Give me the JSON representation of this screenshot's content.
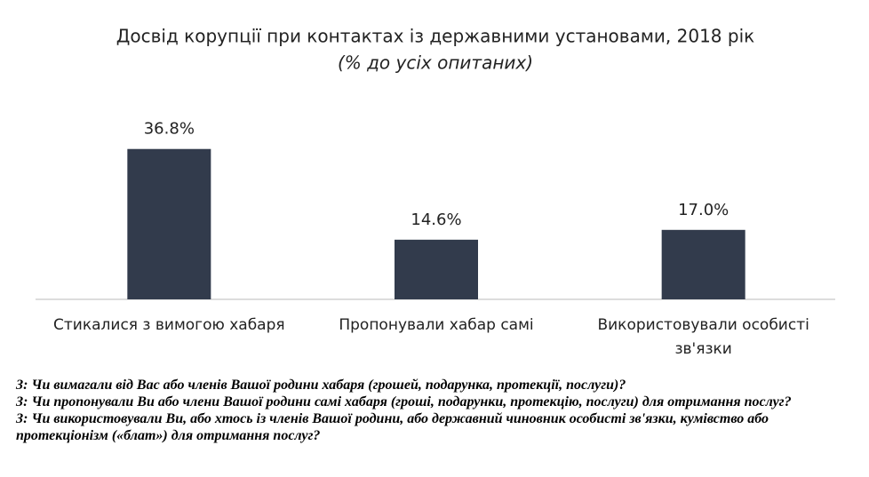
{
  "chart_data": {
    "type": "bar",
    "title": "Досвід корупції при контактах із державними установами, 2018 рік",
    "subtitle": "(% до усіх опитаних)",
    "categories": [
      "Стикалися з вимогою хабаря",
      "Пропонували хабар самі",
      "Використовували особисті зв'язки"
    ],
    "values": [
      36.8,
      14.6,
      17.0
    ],
    "value_labels": [
      "36.8%",
      "14.6%",
      "17.0%"
    ],
    "color": "#323b4c",
    "ylim": [
      0,
      40
    ]
  },
  "notes": [
    "З: Чи вимагали від Вас або членів Вашої родини хабаря (грошей, подарунка, протекції, послуги)?",
    "З: Чи пропонували Ви або члени Вашої родини самі хабаря (гроші, подарунки, протекцію, послуги) для отримання послуг?",
    "З: Чи використовували Ви, або хтось із членів Вашої родини, або державний чиновник особисті зв'язки, кумівство або протекціонізм («блат»)  для отримання послуг?"
  ]
}
